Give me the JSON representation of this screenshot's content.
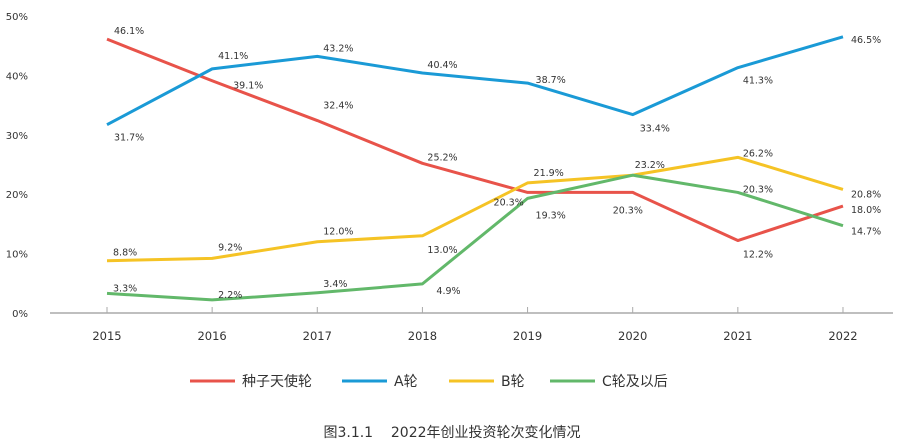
{
  "chart_data": {
    "type": "line",
    "title": "",
    "caption": "图3.1.1    2022年创业投资轮次变化情况",
    "xlabel": "",
    "ylabel": "",
    "categories": [
      "2015",
      "2016",
      "2017",
      "2018",
      "2019",
      "2020",
      "2021",
      "2022"
    ],
    "y_ticks": [
      "0%",
      "10%",
      "20%",
      "30%",
      "40%",
      "50%"
    ],
    "ylim": [
      0,
      50
    ],
    "grid": false,
    "legend_position": "bottom",
    "series": [
      {
        "name": "种子天使轮",
        "color": "#E8534A",
        "values": [
          46.1,
          39.1,
          32.4,
          25.2,
          20.3,
          20.3,
          12.2,
          18.0
        ],
        "labels": [
          "46.1%",
          "39.1%",
          "32.4%",
          "25.2%",
          "20.3%",
          "20.3%",
          "12.2%",
          "18.0%"
        ]
      },
      {
        "name": "A轮",
        "color": "#1A9AD6",
        "values": [
          31.7,
          41.1,
          43.2,
          40.4,
          38.7,
          33.4,
          41.3,
          46.5
        ],
        "labels": [
          "31.7%",
          "41.1%",
          "43.2%",
          "40.4%",
          "38.7%",
          "33.4%",
          "41.3%",
          "46.5%"
        ]
      },
      {
        "name": "B轮",
        "color": "#F5C325",
        "values": [
          8.8,
          9.2,
          12.0,
          13.0,
          21.9,
          23.2,
          26.2,
          20.8
        ],
        "labels": [
          "8.8%",
          "9.2%",
          "12.0%",
          "13.0%",
          "21.9%",
          "23.2%",
          "26.2%",
          "20.8%"
        ]
      },
      {
        "name": "C轮及以后",
        "color": "#62B86A",
        "values": [
          3.3,
          2.2,
          3.4,
          4.9,
          19.3,
          23.2,
          20.3,
          14.7
        ],
        "labels": [
          "3.3%",
          "2.2%",
          "3.4%",
          "4.9%",
          "19.3%",
          null,
          "20.3%",
          "14.7%"
        ]
      }
    ]
  }
}
